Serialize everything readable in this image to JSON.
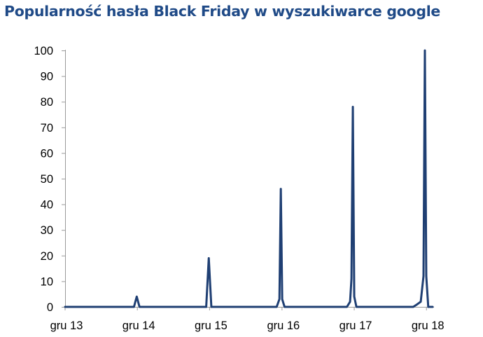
{
  "chart_data": {
    "type": "line",
    "title": "Popularność hasła Black Friday w wyszukiwarce google",
    "xlabel": "",
    "ylabel": "",
    "ylim": [
      0,
      100
    ],
    "yticks": [
      0,
      10,
      20,
      30,
      40,
      50,
      60,
      70,
      80,
      90,
      100
    ],
    "xlim": [
      "2013-12",
      "2019-01"
    ],
    "xticks": [
      {
        "label": "gru 13",
        "x": "2013-12"
      },
      {
        "label": "gru 14",
        "x": "2014-12"
      },
      {
        "label": "gru 15",
        "x": "2015-12"
      },
      {
        "label": "gru 16",
        "x": "2016-12"
      },
      {
        "label": "gru 17",
        "x": "2017-12"
      },
      {
        "label": "gru 18",
        "x": "2018-12"
      }
    ],
    "grid": false,
    "legend": "none",
    "color": "#1f3f73",
    "series": [
      {
        "values": [
          {
            "x": "2013-12",
            "y": 0
          },
          {
            "x": "2014-11-14",
            "y": 0
          },
          {
            "x": "2014-11-28",
            "y": 4
          },
          {
            "x": "2014-12-12",
            "y": 0
          },
          {
            "x": "2015-11-14",
            "y": 0
          },
          {
            "x": "2015-11-27",
            "y": 19
          },
          {
            "x": "2015-12-10",
            "y": 0
          },
          {
            "x": "2016-11-04",
            "y": 0
          },
          {
            "x": "2016-11-18",
            "y": 3
          },
          {
            "x": "2016-11-25",
            "y": 46
          },
          {
            "x": "2016-12-02",
            "y": 3
          },
          {
            "x": "2016-12-14",
            "y": 0
          },
          {
            "x": "2017-10-25",
            "y": 0
          },
          {
            "x": "2017-11-10",
            "y": 2
          },
          {
            "x": "2017-11-17",
            "y": 11
          },
          {
            "x": "2017-11-24",
            "y": 78
          },
          {
            "x": "2017-12-01",
            "y": 4
          },
          {
            "x": "2017-12-12",
            "y": 0
          },
          {
            "x": "2018-09-25",
            "y": 0
          },
          {
            "x": "2018-10-15",
            "y": 1
          },
          {
            "x": "2018-11-02",
            "y": 2
          },
          {
            "x": "2018-11-16",
            "y": 12
          },
          {
            "x": "2018-11-23",
            "y": 100
          },
          {
            "x": "2018-11-30",
            "y": 12
          },
          {
            "x": "2018-12-10",
            "y": 0
          },
          {
            "x": "2019-01",
            "y": 0
          }
        ]
      }
    ]
  }
}
